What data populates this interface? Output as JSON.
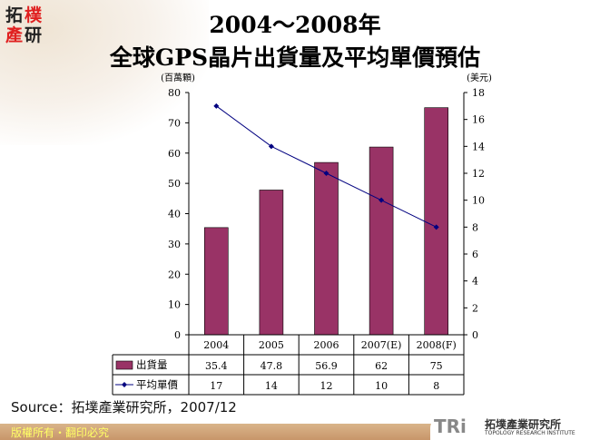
{
  "logo": {
    "chars": [
      "拓",
      "樸",
      "產",
      "研"
    ]
  },
  "title": {
    "line1": "2004～2008年",
    "line2": "全球GPS晶片出貨量及平均單價預估"
  },
  "chart_data": {
    "type": "bar+line",
    "categories": [
      "2004",
      "2005",
      "2006",
      "2007(E)",
      "2008(F)"
    ],
    "series": [
      {
        "name": "出貨量",
        "type": "bar",
        "axis": "left",
        "color": "#993366",
        "values": [
          35.4,
          47.8,
          56.9,
          62,
          75
        ]
      },
      {
        "name": "平均單價",
        "type": "line",
        "axis": "right",
        "color": "#000080",
        "values": [
          17,
          14,
          12,
          10,
          8
        ]
      }
    ],
    "ylabel_left": "(百萬顆)",
    "ylabel_right": "(美元)",
    "ylim_left": [
      0,
      80
    ],
    "yticks_left": [
      0,
      10,
      20,
      30,
      40,
      50,
      60,
      70,
      80
    ],
    "ylim_right": [
      0,
      18
    ],
    "yticks_right": [
      0,
      2,
      4,
      6,
      8,
      10,
      12,
      14,
      16,
      18
    ],
    "grid": false,
    "legend": "data-table-below"
  },
  "source": "Source：拓墣產業研究所，2007/12",
  "footer": {
    "copyright": "版權所有・翻印必究",
    "org_abbr": "TRi",
    "org_name": "拓墣產業研究所",
    "org_en": "TOPOLOGY RESEARCH INSTITUTE"
  }
}
